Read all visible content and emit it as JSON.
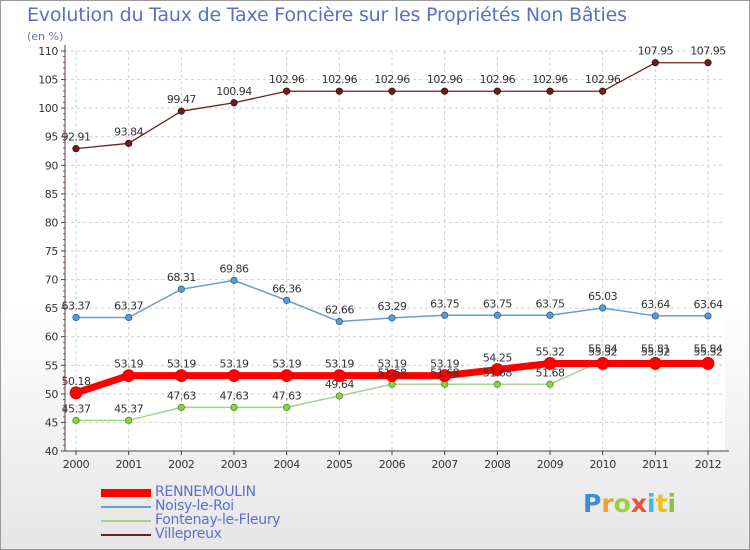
{
  "header": {
    "title": "Evolution du Taux de Taxe Foncière sur les Propriétés Non Bâties",
    "unit": "(en %)"
  },
  "logo": {
    "text": "Proxiti"
  },
  "chart_data": {
    "type": "line",
    "title": "Evolution du Taux de Taxe Foncière sur les Propriétés Non Bâties",
    "ylabel": "(en %)",
    "xlabel": "",
    "ylim": [
      40,
      110
    ],
    "yticks": [
      40,
      45,
      50,
      55,
      60,
      65,
      70,
      75,
      80,
      85,
      90,
      95,
      100,
      105,
      110
    ],
    "grid": true,
    "legend_position": "bottom-left",
    "categories": [
      "2000",
      "2001",
      "2002",
      "2003",
      "2004",
      "2005",
      "2006",
      "2007",
      "2008",
      "2009",
      "2010",
      "2011",
      "2012"
    ],
    "series": [
      {
        "name": "RENNEMOULIN",
        "color": "#ff0000",
        "values": [
          50.18,
          53.19,
          53.19,
          53.19,
          53.19,
          53.19,
          53.19,
          53.19,
          54.25,
          55.32,
          55.32,
          55.32,
          55.32
        ],
        "labels": [
          "50.18",
          "53.19",
          "53.19",
          "53.19",
          "53.19",
          "53.19",
          "53.19",
          "53.19",
          "54.25",
          "55.32",
          "55.32",
          "55.32",
          "55.32"
        ]
      },
      {
        "name": "Noisy-le-Roi",
        "color": "#6a9ed0",
        "values": [
          63.37,
          63.37,
          68.31,
          69.86,
          66.36,
          62.66,
          63.29,
          63.75,
          63.75,
          63.75,
          65.03,
          63.64,
          63.64
        ],
        "labels": [
          "63.37",
          "63.37",
          "68.31",
          "69.86",
          "66.36",
          "62.66",
          "63.29",
          "63.75",
          "63.75",
          "63.75",
          "65.03",
          "63.64",
          "63.64"
        ]
      },
      {
        "name": "Fontenay-le-Fleury",
        "color": "#a6d38c",
        "values": [
          45.37,
          45.37,
          47.63,
          47.63,
          47.63,
          49.64,
          51.68,
          51.68,
          51.68,
          51.68,
          55.84,
          55.81,
          55.84
        ],
        "labels": [
          "45.37",
          "45.37",
          "47.63",
          "47.63",
          "47.63",
          "49.64",
          "51.68",
          "51.68",
          "51.68",
          "51.68",
          "55.84",
          "55.81",
          "55.84"
        ]
      },
      {
        "name": "Villepreux",
        "color": "#6b1f1f",
        "values": [
          92.91,
          93.84,
          99.47,
          100.94,
          102.96,
          102.96,
          102.96,
          102.96,
          102.96,
          102.96,
          102.96,
          107.95,
          107.95
        ],
        "labels": [
          "92.91",
          "93.84",
          "99.47",
          "100.94",
          "102.96",
          "102.96",
          "102.96",
          "102.96",
          "102.96",
          "102.96",
          "102.96",
          "107.95",
          "107.95"
        ]
      }
    ]
  }
}
